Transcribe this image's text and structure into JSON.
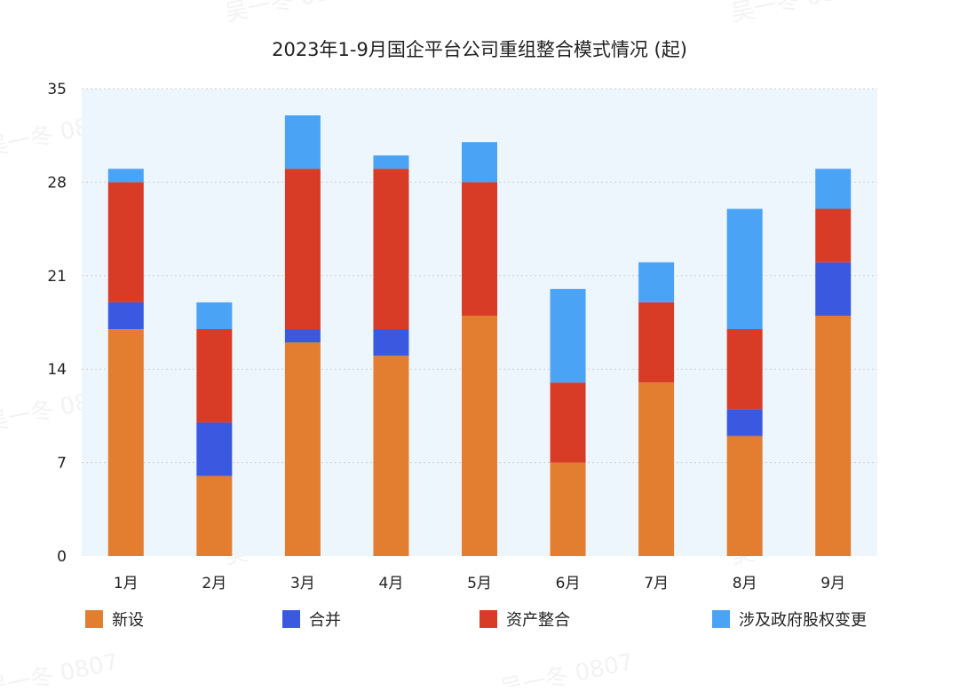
{
  "chart_data": {
    "type": "bar",
    "stacked": true,
    "title": "2023年1-9月国企平台公司重组整合模式情况 (起)",
    "categories": [
      "1月",
      "2月",
      "3月",
      "4月",
      "5月",
      "6月",
      "7月",
      "8月",
      "9月"
    ],
    "series": [
      {
        "name": "新设",
        "color": "#e37d30",
        "values": [
          17,
          6,
          16,
          15,
          18,
          7,
          13,
          9,
          18
        ]
      },
      {
        "name": "合并",
        "color": "#3b59e0",
        "values": [
          2,
          4,
          1,
          2,
          0,
          0,
          0,
          2,
          4
        ]
      },
      {
        "name": "资产整合",
        "color": "#d93c26",
        "values": [
          9,
          7,
          12,
          12,
          10,
          6,
          6,
          6,
          4
        ]
      },
      {
        "name": "涉及政府股权变更",
        "color": "#4aa3f5",
        "values": [
          1,
          2,
          4,
          1,
          3,
          7,
          3,
          9,
          3
        ]
      }
    ],
    "ylim": [
      0,
      35
    ],
    "yticks": [
      0,
      7,
      14,
      21,
      28,
      35
    ],
    "grid": true,
    "legend_position": "bottom",
    "plot_background": "#eef6fd",
    "grid_color": "#cfcfcf"
  },
  "watermark": "吴一冬 0807"
}
